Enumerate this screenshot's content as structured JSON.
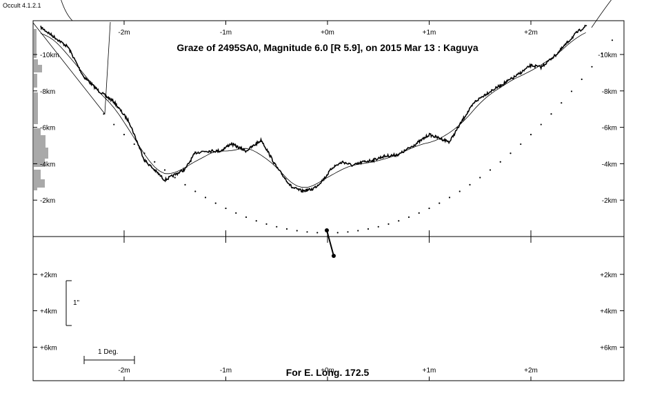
{
  "app": {
    "version_label": "Occult 4.1.2.1"
  },
  "chart_data": {
    "type": "line",
    "title": "Graze of  2495SA0,  Magnitude 6.0 [R 5.9],  on 2015 Mar 13  :  Kaguya",
    "footer": "For E. Long. 172.5",
    "x_ticks_top": [
      "-2m",
      "-1m",
      "+0m",
      "+1m",
      "+2m"
    ],
    "x_ticks_bottom": [
      "-2m",
      "-1m",
      "+0m",
      "+1m",
      "+2m"
    ],
    "y_ticks_upper": [
      "-10km",
      "-8km",
      "-6km",
      "-4km",
      "-2km"
    ],
    "y_ticks_lower": [
      "+2km",
      "+4km",
      "+6km"
    ],
    "xlim_min": [
      -3.0,
      2.9
    ],
    "ylim_km": [
      -11.9,
      7.8
    ],
    "scale_bar_arcsec": "1\"",
    "scale_bar_deg": "1 Deg.",
    "profile_km": {
      "x": [
        -2.82,
        -2.55,
        -2.4,
        -2.25,
        -2.1,
        -1.95,
        -1.8,
        -1.6,
        -1.4,
        -1.3,
        -1.2,
        -1.05,
        -0.95,
        -0.8,
        -0.65,
        -0.5,
        -0.35,
        -0.25,
        -0.15,
        -0.1,
        -0.03,
        0.05,
        0.15,
        0.25,
        0.35,
        0.45,
        0.55,
        0.7,
        0.9,
        1.0,
        1.1,
        1.2,
        1.35,
        1.45,
        1.55,
        1.7,
        1.85,
        2.0,
        2.1,
        2.25,
        2.35,
        2.45,
        2.55
      ],
      "y": [
        -11.5,
        -10.4,
        -8.8,
        -8.0,
        -7.4,
        -6.3,
        -4.2,
        -3.1,
        -3.7,
        -4.6,
        -4.7,
        -4.7,
        -5.1,
        -4.7,
        -5.3,
        -3.8,
        -2.7,
        -2.5,
        -2.6,
        -2.8,
        -3.2,
        -3.8,
        -4.1,
        -3.9,
        -4.1,
        -4.2,
        -4.4,
        -4.5,
        -5.2,
        -5.6,
        -5.4,
        -5.2,
        -6.6,
        -7.4,
        -7.8,
        -8.3,
        -8.8,
        -9.4,
        -9.3,
        -10.0,
        -10.6,
        -11.2,
        -11.6
      ]
    },
    "limb_dots_x_min": [
      -2.2,
      -2.1,
      -2.0,
      -1.9,
      -1.8,
      -1.7,
      -1.6,
      -1.5,
      -1.4,
      -1.3,
      -1.2,
      -1.1,
      -1.0,
      -0.9,
      -0.8,
      -0.7,
      -0.6,
      -0.5,
      -0.4,
      -0.3,
      -0.2,
      -0.1,
      0.0,
      0.1,
      0.2,
      0.3,
      0.4,
      0.5,
      0.6,
      0.7,
      0.8,
      0.9,
      1.0,
      1.1,
      1.2,
      1.3,
      1.4,
      1.5,
      1.6,
      1.7,
      1.8,
      1.9,
      2.0,
      2.1,
      2.2,
      2.3,
      2.4,
      2.5,
      2.6,
      2.7,
      2.8
    ]
  },
  "colors": {
    "profile": "#000000",
    "histogram": "#a9a9a9",
    "frame": "#000000"
  }
}
